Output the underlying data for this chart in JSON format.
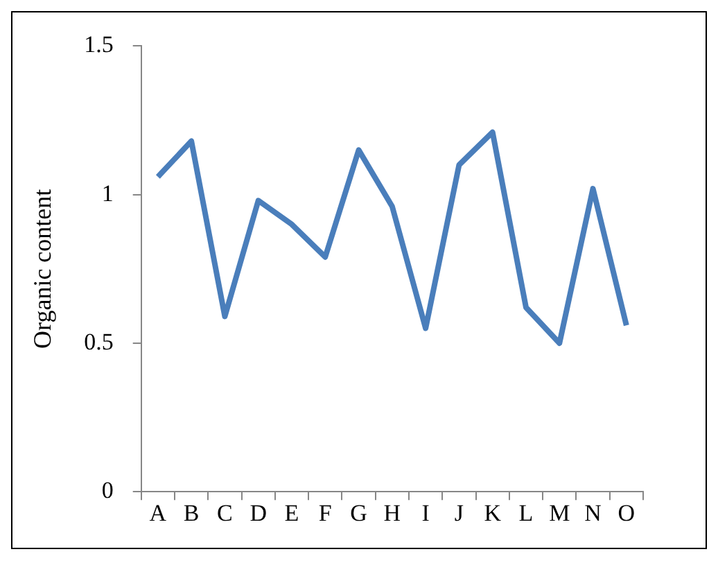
{
  "chart_data": {
    "type": "line",
    "ylabel": "Organic content",
    "categories": [
      "A",
      "B",
      "C",
      "D",
      "E",
      "F",
      "G",
      "H",
      "I",
      "J",
      "K",
      "L",
      "M",
      "N",
      "O"
    ],
    "series": [
      {
        "color": "#4a7ebb",
        "values": [
          1.06,
          1.18,
          0.59,
          0.98,
          0.9,
          0.79,
          1.15,
          0.96,
          0.55,
          1.1,
          1.21,
          0.62,
          0.5,
          1.02,
          0.56
        ]
      }
    ],
    "ylim": [
      0,
      1.5
    ],
    "yticks": [
      0,
      0.5,
      1,
      1.5
    ],
    "grid": false,
    "legend": false,
    "marker": "none",
    "line_style": "solid"
  }
}
